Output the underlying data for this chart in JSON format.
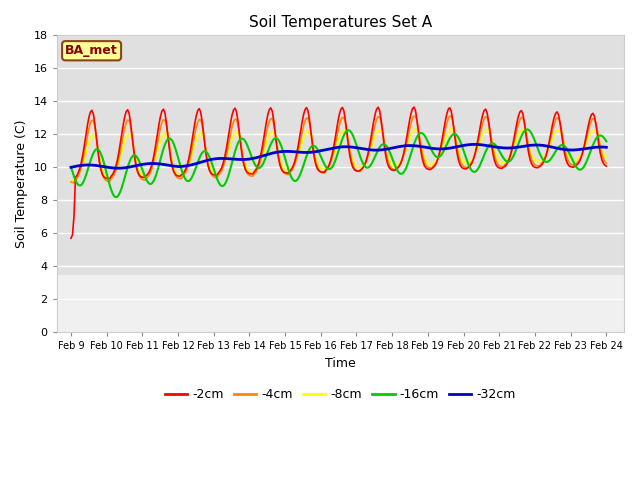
{
  "title": "Soil Temperatures Set A",
  "xlabel": "Time",
  "ylabel": "Soil Temperature (C)",
  "ylim": [
    0,
    18
  ],
  "yticks": [
    0,
    2,
    4,
    6,
    8,
    10,
    12,
    14,
    16,
    18
  ],
  "fig_bg_color": "#ffffff",
  "plot_bg_color": "#e0e0e0",
  "label_box_text": "BA_met",
  "label_box_color": "#ffff99",
  "label_box_edge": "#8B4513",
  "legend_entries": [
    "-2cm",
    "-4cm",
    "-8cm",
    "-16cm",
    "-32cm"
  ],
  "line_colors": [
    "#ff0000",
    "#ff8800",
    "#ffff00",
    "#00cc00",
    "#0000cc"
  ],
  "line_widths": [
    1.2,
    1.2,
    1.2,
    1.5,
    2.0
  ],
  "xtick_labels": [
    "Feb 9",
    "Feb 10",
    "Feb 11",
    "Feb 12",
    "Feb 13",
    "Feb 14",
    "Feb 15",
    "Feb 16",
    "Feb 17",
    "Feb 18",
    "Feb 19",
    "Feb 20",
    "Feb 21",
    "Feb 22",
    "Feb 23",
    "Feb 24"
  ],
  "grid_color": "#ffffff",
  "title_fontsize": 11,
  "axis_label_fontsize": 9,
  "tick_fontsize": 7,
  "legend_fontsize": 9
}
